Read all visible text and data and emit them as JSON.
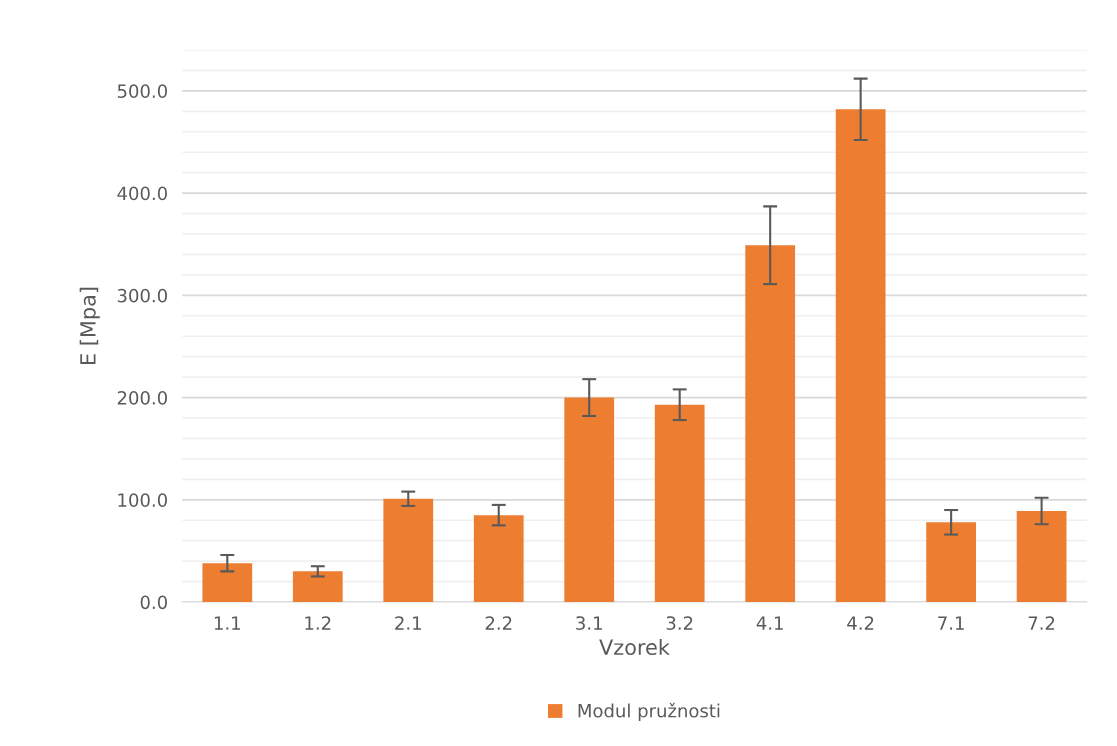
{
  "chart_data": {
    "type": "bar",
    "xlabel": "Vzorek",
    "ylabel": "E [Mpa]",
    "categories": [
      "1.1",
      "1.2",
      "2.1",
      "2.2",
      "3.1",
      "3.2",
      "4.1",
      "4.2",
      "7.1",
      "7.2"
    ],
    "series": [
      {
        "name": "Modul pružnosti",
        "color": "#ed7d31",
        "values": [
          38,
          30,
          101,
          85,
          200,
          193,
          349,
          482,
          78,
          89
        ],
        "errors": [
          8,
          5,
          7,
          10,
          18,
          15,
          38,
          30,
          12,
          13
        ]
      }
    ],
    "ylim": [
      0,
      540
    ],
    "yticks": [
      {
        "value": 0,
        "label": "0.0"
      },
      {
        "value": 100,
        "label": "100.0"
      },
      {
        "value": 200,
        "label": "200.0"
      },
      {
        "value": 300,
        "label": "300.0"
      },
      {
        "value": 400,
        "label": "400.0"
      },
      {
        "value": 500,
        "label": "500.0"
      }
    ],
    "grid": "y",
    "legend": "bottom"
  }
}
